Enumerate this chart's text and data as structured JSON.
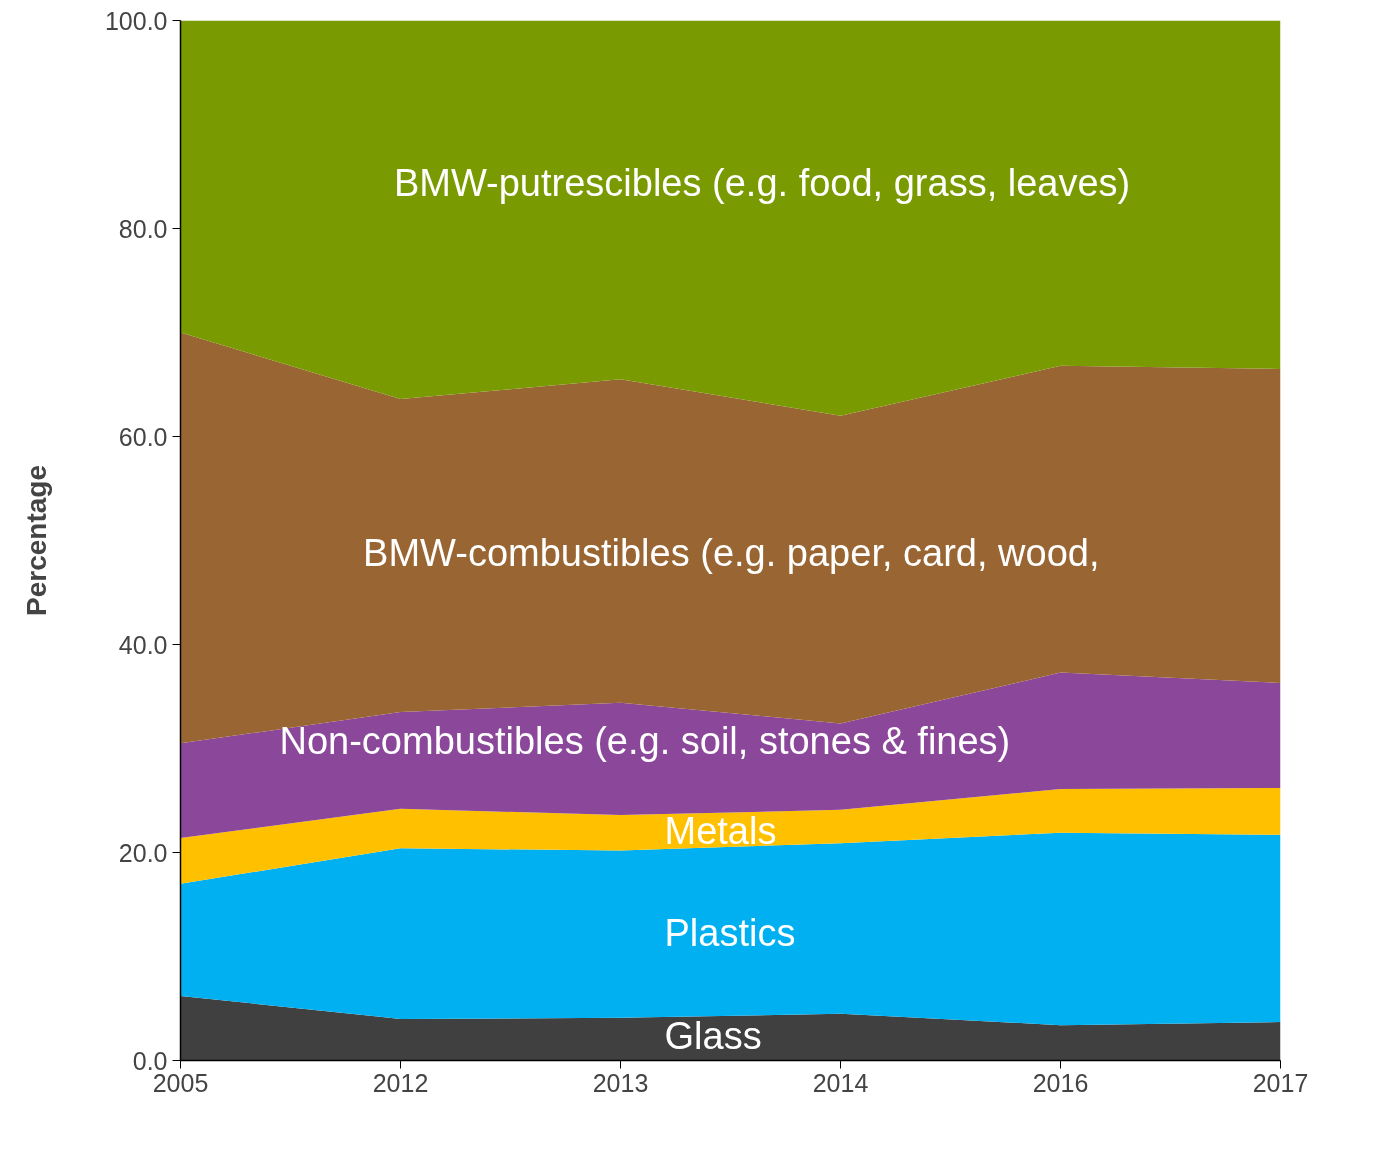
{
  "chart_data": {
    "type": "area",
    "stacked": true,
    "ylabel": "Percentage",
    "categories": [
      "2005",
      "2012",
      "2013",
      "2014",
      "2016",
      "2017"
    ],
    "ylim": [
      0,
      100
    ],
    "yticks": [
      {
        "value": 0,
        "label": "0.0"
      },
      {
        "value": 20,
        "label": "20.0"
      },
      {
        "value": 40,
        "label": "40.0"
      },
      {
        "value": 60,
        "label": "60.0"
      },
      {
        "value": 80,
        "label": "80.0"
      },
      {
        "value": 100,
        "label": "100.0"
      }
    ],
    "grid": false,
    "series": [
      {
        "name": "Glass",
        "color": "#404040",
        "values": [
          6.2,
          4.0,
          4.1,
          4.5,
          3.4,
          3.7
        ]
      },
      {
        "name": "Plastics",
        "color": "#00b0f0",
        "values": [
          10.8,
          16.4,
          16.1,
          16.4,
          18.5,
          18.0
        ]
      },
      {
        "name": "Metals",
        "color": "#ffc000",
        "values": [
          4.4,
          3.8,
          3.4,
          3.2,
          4.2,
          4.5
        ]
      },
      {
        "name": "Non-combustibles (e.g. soil, stones & fines)",
        "color": "#8b4799",
        "values": [
          9.1,
          9.3,
          10.8,
          8.3,
          11.2,
          10.1
        ]
      },
      {
        "name": "BMW-combustibles (e.g. paper, card, wood,",
        "color": "#996633",
        "values": [
          39.5,
          30.1,
          31.1,
          29.6,
          29.5,
          30.2
        ]
      },
      {
        "name": "BMW-putrescibles (e.g. food, grass, leaves)",
        "color": "#7a9a01",
        "values": [
          30.0,
          36.4,
          34.5,
          38.0,
          33.2,
          33.5
        ]
      }
    ]
  }
}
